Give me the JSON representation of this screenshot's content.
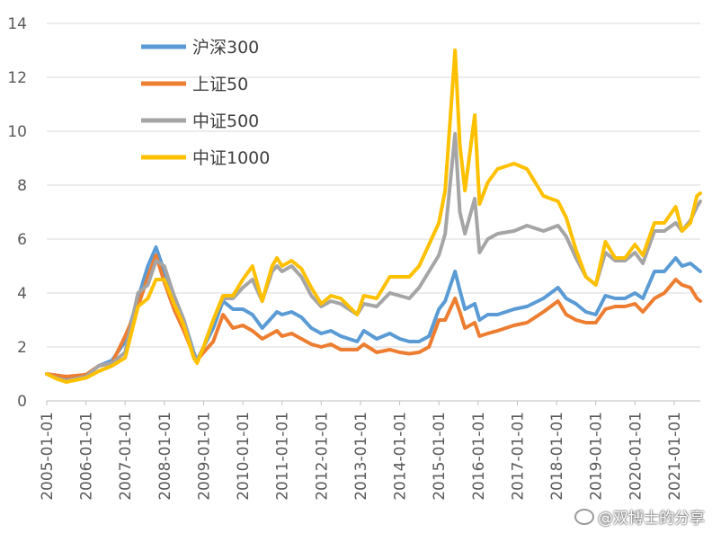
{
  "chart_data": {
    "type": "line",
    "title": "",
    "xlabel": "",
    "ylabel": "",
    "ylim": [
      0,
      14
    ],
    "yticks": [
      0,
      2,
      4,
      6,
      8,
      10,
      12,
      14
    ],
    "x_tick_labels": [
      "2005-01-01",
      "2006-01-01",
      "2007-01-01",
      "2008-01-01",
      "2009-01-01",
      "2010-01-01",
      "2011-01-01",
      "2012-01-01",
      "2013-01-01",
      "2014-01-01",
      "2015-01-01",
      "2016-01-01",
      "2017-01-01",
      "2018-01-01",
      "2019-01-01",
      "2020-01-01",
      "2021-01-01"
    ],
    "grid": "horizontal",
    "legend_position": "top-left",
    "series": [
      {
        "name": "沪深300",
        "color": "#5b9bd5",
        "points": [
          [
            "2005-01-01",
            1.0
          ],
          [
            "2005-04-01",
            0.92
          ],
          [
            "2005-07-01",
            0.85
          ],
          [
            "2006-01-01",
            0.95
          ],
          [
            "2006-05-01",
            1.3
          ],
          [
            "2006-09-01",
            1.5
          ],
          [
            "2007-01-01",
            2.2
          ],
          [
            "2007-05-01",
            3.8
          ],
          [
            "2007-08-01",
            5.0
          ],
          [
            "2007-10-15",
            5.7
          ],
          [
            "2008-01-01",
            4.8
          ],
          [
            "2008-04-01",
            3.9
          ],
          [
            "2008-07-01",
            3.0
          ],
          [
            "2008-10-01",
            1.8
          ],
          [
            "2008-11-01",
            1.5
          ],
          [
            "2009-01-01",
            2.0
          ],
          [
            "2009-04-01",
            2.7
          ],
          [
            "2009-07-01",
            3.7
          ],
          [
            "2009-10-01",
            3.4
          ],
          [
            "2010-01-01",
            3.4
          ],
          [
            "2010-04-01",
            3.2
          ],
          [
            "2010-07-01",
            2.7
          ],
          [
            "2010-10-01",
            3.1
          ],
          [
            "2010-11-15",
            3.3
          ],
          [
            "2011-01-01",
            3.2
          ],
          [
            "2011-04-01",
            3.3
          ],
          [
            "2011-07-01",
            3.1
          ],
          [
            "2011-10-01",
            2.7
          ],
          [
            "2012-01-01",
            2.5
          ],
          [
            "2012-04-01",
            2.6
          ],
          [
            "2012-07-01",
            2.4
          ],
          [
            "2012-12-01",
            2.2
          ],
          [
            "2013-02-01",
            2.6
          ],
          [
            "2013-06-01",
            2.3
          ],
          [
            "2013-10-01",
            2.5
          ],
          [
            "2014-01-01",
            2.3
          ],
          [
            "2014-04-01",
            2.2
          ],
          [
            "2014-07-01",
            2.2
          ],
          [
            "2014-10-01",
            2.4
          ],
          [
            "2015-01-01",
            3.4
          ],
          [
            "2015-03-01",
            3.7
          ],
          [
            "2015-06-01",
            4.8
          ],
          [
            "2015-07-15",
            4.1
          ],
          [
            "2015-09-01",
            3.4
          ],
          [
            "2015-12-01",
            3.6
          ],
          [
            "2016-01-15",
            3.0
          ],
          [
            "2016-04-01",
            3.2
          ],
          [
            "2016-07-01",
            3.2
          ],
          [
            "2016-12-01",
            3.4
          ],
          [
            "2017-04-01",
            3.5
          ],
          [
            "2017-09-01",
            3.8
          ],
          [
            "2018-01-15",
            4.2
          ],
          [
            "2018-04-01",
            3.8
          ],
          [
            "2018-07-01",
            3.6
          ],
          [
            "2018-10-01",
            3.3
          ],
          [
            "2019-01-01",
            3.2
          ],
          [
            "2019-04-01",
            3.9
          ],
          [
            "2019-07-01",
            3.8
          ],
          [
            "2019-10-01",
            3.8
          ],
          [
            "2020-01-01",
            4.0
          ],
          [
            "2020-03-15",
            3.8
          ],
          [
            "2020-07-01",
            4.8
          ],
          [
            "2020-10-01",
            4.8
          ],
          [
            "2021-01-15",
            5.3
          ],
          [
            "2021-03-15",
            5.0
          ],
          [
            "2021-06-01",
            5.1
          ],
          [
            "2021-08-01",
            4.9
          ],
          [
            "2021-09-01",
            4.8
          ]
        ]
      },
      {
        "name": "上证50",
        "color": "#ed7d31",
        "points": [
          [
            "2005-01-01",
            1.0
          ],
          [
            "2005-04-01",
            0.95
          ],
          [
            "2005-07-01",
            0.9
          ],
          [
            "2006-01-01",
            0.97
          ],
          [
            "2006-05-01",
            1.3
          ],
          [
            "2006-09-01",
            1.4
          ],
          [
            "2007-01-01",
            2.4
          ],
          [
            "2007-05-01",
            3.5
          ],
          [
            "2007-08-01",
            4.6
          ],
          [
            "2007-10-15",
            5.4
          ],
          [
            "2008-01-01",
            4.4
          ],
          [
            "2008-04-01",
            3.4
          ],
          [
            "2008-07-01",
            2.6
          ],
          [
            "2008-10-01",
            1.7
          ],
          [
            "2008-11-01",
            1.5
          ],
          [
            "2009-01-01",
            1.8
          ],
          [
            "2009-04-01",
            2.2
          ],
          [
            "2009-07-01",
            3.2
          ],
          [
            "2009-10-01",
            2.7
          ],
          [
            "2010-01-01",
            2.8
          ],
          [
            "2010-04-01",
            2.6
          ],
          [
            "2010-07-01",
            2.3
          ],
          [
            "2010-10-01",
            2.5
          ],
          [
            "2010-11-15",
            2.6
          ],
          [
            "2011-01-01",
            2.4
          ],
          [
            "2011-04-01",
            2.5
          ],
          [
            "2011-07-01",
            2.3
          ],
          [
            "2011-10-01",
            2.1
          ],
          [
            "2012-01-01",
            2.0
          ],
          [
            "2012-04-01",
            2.1
          ],
          [
            "2012-07-01",
            1.9
          ],
          [
            "2012-12-01",
            1.9
          ],
          [
            "2013-02-01",
            2.1
          ],
          [
            "2013-06-01",
            1.8
          ],
          [
            "2013-10-01",
            1.9
          ],
          [
            "2014-01-01",
            1.8
          ],
          [
            "2014-04-01",
            1.75
          ],
          [
            "2014-07-01",
            1.8
          ],
          [
            "2014-10-01",
            2.0
          ],
          [
            "2015-01-01",
            3.0
          ],
          [
            "2015-03-01",
            3.0
          ],
          [
            "2015-06-01",
            3.8
          ],
          [
            "2015-07-15",
            3.3
          ],
          [
            "2015-09-01",
            2.7
          ],
          [
            "2015-12-01",
            2.9
          ],
          [
            "2016-01-15",
            2.4
          ],
          [
            "2016-04-01",
            2.5
          ],
          [
            "2016-07-01",
            2.6
          ],
          [
            "2016-12-01",
            2.8
          ],
          [
            "2017-04-01",
            2.9
          ],
          [
            "2017-09-01",
            3.3
          ],
          [
            "2018-01-15",
            3.7
          ],
          [
            "2018-04-01",
            3.2
          ],
          [
            "2018-07-01",
            3.0
          ],
          [
            "2018-10-01",
            2.9
          ],
          [
            "2019-01-01",
            2.9
          ],
          [
            "2019-04-01",
            3.4
          ],
          [
            "2019-07-01",
            3.5
          ],
          [
            "2019-10-01",
            3.5
          ],
          [
            "2020-01-01",
            3.6
          ],
          [
            "2020-03-15",
            3.3
          ],
          [
            "2020-07-01",
            3.8
          ],
          [
            "2020-10-01",
            4.0
          ],
          [
            "2021-01-15",
            4.5
          ],
          [
            "2021-03-15",
            4.3
          ],
          [
            "2021-06-01",
            4.2
          ],
          [
            "2021-08-01",
            3.8
          ],
          [
            "2021-09-01",
            3.7
          ]
        ]
      },
      {
        "name": "中证500",
        "color": "#a5a5a5",
        "points": [
          [
            "2005-01-01",
            1.0
          ],
          [
            "2005-04-01",
            0.85
          ],
          [
            "2005-07-01",
            0.75
          ],
          [
            "2006-01-01",
            0.9
          ],
          [
            "2006-05-01",
            1.3
          ],
          [
            "2006-09-01",
            1.4
          ],
          [
            "2007-01-01",
            1.8
          ],
          [
            "2007-05-01",
            4.0
          ],
          [
            "2007-08-01",
            4.3
          ],
          [
            "2007-10-15",
            5.2
          ],
          [
            "2008-01-01",
            5.0
          ],
          [
            "2008-04-01",
            3.9
          ],
          [
            "2008-07-01",
            3.0
          ],
          [
            "2008-10-01",
            1.7
          ],
          [
            "2008-11-01",
            1.5
          ],
          [
            "2009-01-01",
            2.0
          ],
          [
            "2009-04-01",
            3.0
          ],
          [
            "2009-07-01",
            3.8
          ],
          [
            "2009-10-01",
            3.8
          ],
          [
            "2010-01-01",
            4.2
          ],
          [
            "2010-04-01",
            4.5
          ],
          [
            "2010-07-01",
            3.7
          ],
          [
            "2010-10-01",
            4.8
          ],
          [
            "2010-11-15",
            5.0
          ],
          [
            "2011-01-01",
            4.8
          ],
          [
            "2011-04-01",
            5.0
          ],
          [
            "2011-07-01",
            4.6
          ],
          [
            "2011-10-01",
            3.9
          ],
          [
            "2012-01-01",
            3.5
          ],
          [
            "2012-04-01",
            3.7
          ],
          [
            "2012-07-01",
            3.6
          ],
          [
            "2012-12-01",
            3.2
          ],
          [
            "2013-02-01",
            3.6
          ],
          [
            "2013-06-01",
            3.5
          ],
          [
            "2013-10-01",
            4.0
          ],
          [
            "2014-01-01",
            3.9
          ],
          [
            "2014-04-01",
            3.8
          ],
          [
            "2014-07-01",
            4.2
          ],
          [
            "2014-10-01",
            4.8
          ],
          [
            "2015-01-01",
            5.4
          ],
          [
            "2015-03-01",
            6.2
          ],
          [
            "2015-06-01",
            9.9
          ],
          [
            "2015-07-15",
            7.0
          ],
          [
            "2015-09-01",
            6.2
          ],
          [
            "2015-12-01",
            7.5
          ],
          [
            "2016-01-15",
            5.5
          ],
          [
            "2016-04-01",
            6.0
          ],
          [
            "2016-07-01",
            6.2
          ],
          [
            "2016-12-01",
            6.3
          ],
          [
            "2017-04-01",
            6.5
          ],
          [
            "2017-09-01",
            6.3
          ],
          [
            "2018-01-15",
            6.5
          ],
          [
            "2018-04-01",
            6.1
          ],
          [
            "2018-07-01",
            5.3
          ],
          [
            "2018-10-01",
            4.6
          ],
          [
            "2019-01-01",
            4.3
          ],
          [
            "2019-04-01",
            5.5
          ],
          [
            "2019-07-01",
            5.2
          ],
          [
            "2019-10-01",
            5.2
          ],
          [
            "2020-01-01",
            5.5
          ],
          [
            "2020-03-15",
            5.1
          ],
          [
            "2020-07-01",
            6.3
          ],
          [
            "2020-10-01",
            6.3
          ],
          [
            "2021-01-15",
            6.6
          ],
          [
            "2021-03-15",
            6.3
          ],
          [
            "2021-06-01",
            6.7
          ],
          [
            "2021-08-01",
            7.2
          ],
          [
            "2021-09-01",
            7.4
          ]
        ]
      },
      {
        "name": "中证1000",
        "color": "#ffc000",
        "points": [
          [
            "2005-01-01",
            1.0
          ],
          [
            "2005-04-01",
            0.82
          ],
          [
            "2005-07-01",
            0.7
          ],
          [
            "2006-01-01",
            0.85
          ],
          [
            "2006-05-01",
            1.1
          ],
          [
            "2006-09-01",
            1.3
          ],
          [
            "2007-01-01",
            1.6
          ],
          [
            "2007-05-01",
            3.5
          ],
          [
            "2007-08-01",
            3.8
          ],
          [
            "2007-10-15",
            4.5
          ],
          [
            "2008-01-01",
            4.5
          ],
          [
            "2008-04-01",
            3.6
          ],
          [
            "2008-07-01",
            2.8
          ],
          [
            "2008-10-01",
            1.6
          ],
          [
            "2008-11-01",
            1.4
          ],
          [
            "2009-01-01",
            2.0
          ],
          [
            "2009-04-01",
            3.0
          ],
          [
            "2009-07-01",
            3.9
          ],
          [
            "2009-10-01",
            3.9
          ],
          [
            "2010-01-01",
            4.5
          ],
          [
            "2010-04-01",
            5.0
          ],
          [
            "2010-07-01",
            3.7
          ],
          [
            "2010-10-01",
            5.0
          ],
          [
            "2010-11-15",
            5.3
          ],
          [
            "2011-01-01",
            5.0
          ],
          [
            "2011-04-01",
            5.2
          ],
          [
            "2011-07-01",
            4.9
          ],
          [
            "2011-10-01",
            4.2
          ],
          [
            "2012-01-01",
            3.6
          ],
          [
            "2012-04-01",
            3.9
          ],
          [
            "2012-07-01",
            3.8
          ],
          [
            "2012-12-01",
            3.2
          ],
          [
            "2013-02-01",
            3.9
          ],
          [
            "2013-06-01",
            3.8
          ],
          [
            "2013-10-01",
            4.6
          ],
          [
            "2014-01-01",
            4.6
          ],
          [
            "2014-04-01",
            4.6
          ],
          [
            "2014-07-01",
            5.0
          ],
          [
            "2014-10-01",
            5.8
          ],
          [
            "2015-01-01",
            6.6
          ],
          [
            "2015-03-01",
            7.8
          ],
          [
            "2015-06-01",
            13.0
          ],
          [
            "2015-07-15",
            9.5
          ],
          [
            "2015-09-01",
            7.8
          ],
          [
            "2015-12-01",
            10.6
          ],
          [
            "2016-01-15",
            7.3
          ],
          [
            "2016-04-01",
            8.1
          ],
          [
            "2016-07-01",
            8.6
          ],
          [
            "2016-12-01",
            8.8
          ],
          [
            "2017-04-01",
            8.6
          ],
          [
            "2017-09-01",
            7.6
          ],
          [
            "2018-01-15",
            7.4
          ],
          [
            "2018-04-01",
            6.8
          ],
          [
            "2018-07-01",
            5.6
          ],
          [
            "2018-10-01",
            4.6
          ],
          [
            "2019-01-01",
            4.3
          ],
          [
            "2019-04-01",
            5.9
          ],
          [
            "2019-07-01",
            5.3
          ],
          [
            "2019-10-01",
            5.3
          ],
          [
            "2020-01-01",
            5.8
          ],
          [
            "2020-03-15",
            5.4
          ],
          [
            "2020-07-01",
            6.6
          ],
          [
            "2020-10-01",
            6.6
          ],
          [
            "2021-01-15",
            7.2
          ],
          [
            "2021-03-15",
            6.3
          ],
          [
            "2021-06-01",
            6.6
          ],
          [
            "2021-08-01",
            7.6
          ],
          [
            "2021-09-01",
            7.7
          ]
        ]
      }
    ]
  },
  "watermark": "@双博士的分享"
}
